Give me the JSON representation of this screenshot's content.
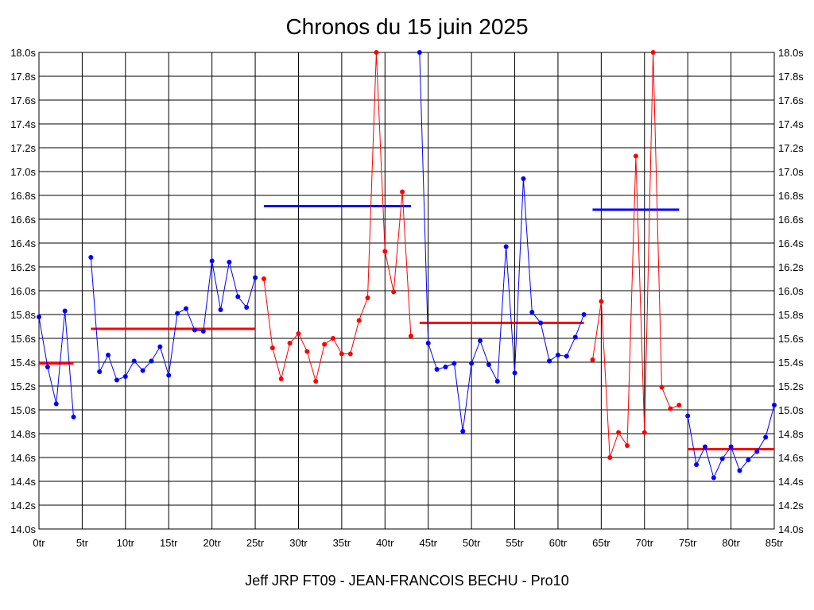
{
  "title": "Chronos du 15 juin 2025",
  "footer": "Jeff JRP FT09 - JEAN-FRANCOIS BECHU - Pro10",
  "chart_data": {
    "type": "line",
    "title": "Chronos du 15 juin 2025",
    "xlim": [
      0,
      85
    ],
    "ylim": [
      14.0,
      18.0
    ],
    "xticks": [
      0,
      5,
      10,
      15,
      20,
      25,
      30,
      35,
      40,
      45,
      50,
      55,
      60,
      65,
      70,
      75,
      80,
      85
    ],
    "xtick_labels": [
      "0tr",
      "5tr",
      "10tr",
      "15tr",
      "20tr",
      "25tr",
      "30tr",
      "35tr",
      "40tr",
      "45tr",
      "50tr",
      "55tr",
      "60tr",
      "65tr",
      "70tr",
      "75tr",
      "80tr",
      "85tr"
    ],
    "yticks": [
      14.0,
      14.2,
      14.4,
      14.6,
      14.8,
      15.0,
      15.2,
      15.4,
      15.6,
      15.8,
      16.0,
      16.2,
      16.4,
      16.6,
      16.8,
      17.0,
      17.2,
      17.4,
      17.6,
      17.8,
      18.0
    ],
    "ytick_labels": [
      "14.0s",
      "14.2s",
      "14.4s",
      "14.6s",
      "14.8s",
      "15.0s",
      "15.2s",
      "15.4s",
      "15.6s",
      "15.8s",
      "16.0s",
      "16.2s",
      "16.4s",
      "16.6s",
      "16.8s",
      "17.0s",
      "17.2s",
      "17.4s",
      "17.6s",
      "17.8s",
      "18.0s"
    ],
    "grid": true,
    "colors": {
      "blue": "#0000ff",
      "red": "#ff0000"
    },
    "series": [
      {
        "color": "#0000ff",
        "points": [
          [
            0,
            15.78
          ],
          [
            1,
            15.36
          ],
          [
            2,
            15.05
          ],
          [
            3,
            15.83
          ],
          [
            4,
            14.94
          ]
        ]
      },
      {
        "color": "#0000ff",
        "points": [
          [
            6,
            16.28
          ],
          [
            7,
            15.32
          ],
          [
            8,
            15.46
          ],
          [
            9,
            15.25
          ],
          [
            10,
            15.28
          ],
          [
            11,
            15.41
          ],
          [
            12,
            15.33
          ],
          [
            13,
            15.41
          ],
          [
            14,
            15.53
          ],
          [
            15,
            15.29
          ],
          [
            16,
            15.81
          ],
          [
            17,
            15.85
          ],
          [
            18,
            15.67
          ],
          [
            19,
            15.66
          ],
          [
            20,
            16.25
          ],
          [
            21,
            15.84
          ],
          [
            22,
            16.24
          ],
          [
            23,
            15.95
          ],
          [
            24,
            15.86
          ],
          [
            25,
            16.11
          ]
        ]
      },
      {
        "color": "#ff0000",
        "points": [
          [
            26,
            16.1
          ],
          [
            27,
            15.52
          ],
          [
            28,
            15.26
          ],
          [
            29,
            15.56
          ],
          [
            30,
            15.64
          ],
          [
            31,
            15.49
          ],
          [
            32,
            15.24
          ],
          [
            33,
            15.55
          ],
          [
            34,
            15.6
          ],
          [
            35,
            15.47
          ],
          [
            36,
            15.47
          ],
          [
            37,
            15.75
          ],
          [
            38,
            15.94
          ],
          [
            39,
            18.0
          ],
          [
            40,
            16.33
          ],
          [
            41,
            15.99
          ],
          [
            42,
            16.83
          ],
          [
            43,
            15.62
          ]
        ]
      },
      {
        "color": "#0000ff",
        "points": [
          [
            44,
            18.0
          ],
          [
            45,
            15.56
          ],
          [
            46,
            15.34
          ],
          [
            47,
            15.36
          ],
          [
            48,
            15.39
          ],
          [
            49,
            14.82
          ],
          [
            50,
            15.39
          ],
          [
            51,
            15.58
          ],
          [
            52,
            15.38
          ],
          [
            53,
            15.24
          ],
          [
            54,
            16.37
          ],
          [
            55,
            15.31
          ],
          [
            56,
            16.94
          ],
          [
            57,
            15.82
          ],
          [
            58,
            15.73
          ],
          [
            59,
            15.41
          ],
          [
            60,
            15.46
          ],
          [
            61,
            15.45
          ],
          [
            62,
            15.61
          ],
          [
            63,
            15.8
          ]
        ]
      },
      {
        "color": "#ff0000",
        "points": [
          [
            64,
            15.42
          ],
          [
            65,
            15.91
          ],
          [
            66,
            14.6
          ],
          [
            67,
            14.81
          ],
          [
            68,
            14.7
          ],
          [
            69,
            17.13
          ],
          [
            70,
            14.81
          ],
          [
            71,
            18.0
          ],
          [
            72,
            15.19
          ],
          [
            73,
            15.01
          ],
          [
            74,
            15.04
          ]
        ]
      },
      {
        "color": "#0000ff",
        "points": [
          [
            75,
            14.95
          ],
          [
            76,
            14.54
          ],
          [
            77,
            14.69
          ],
          [
            78,
            14.43
          ],
          [
            79,
            14.59
          ],
          [
            80,
            14.69
          ],
          [
            81,
            14.49
          ],
          [
            82,
            14.58
          ],
          [
            83,
            14.65
          ],
          [
            84,
            14.77
          ],
          [
            85,
            15.04
          ]
        ]
      }
    ],
    "averages": [
      {
        "color": "#ff0000",
        "x0": 0,
        "x1": 4,
        "y": 15.39
      },
      {
        "color": "#ff0000",
        "x0": 6,
        "x1": 25,
        "y": 15.68
      },
      {
        "color": "#0000ff",
        "x0": 26,
        "x1": 43,
        "y": 16.71
      },
      {
        "color": "#ff0000",
        "x0": 44,
        "x1": 63,
        "y": 15.73
      },
      {
        "color": "#0000ff",
        "x0": 64,
        "x1": 74,
        "y": 16.68
      },
      {
        "color": "#ff0000",
        "x0": 75,
        "x1": 85,
        "y": 14.67
      }
    ]
  }
}
